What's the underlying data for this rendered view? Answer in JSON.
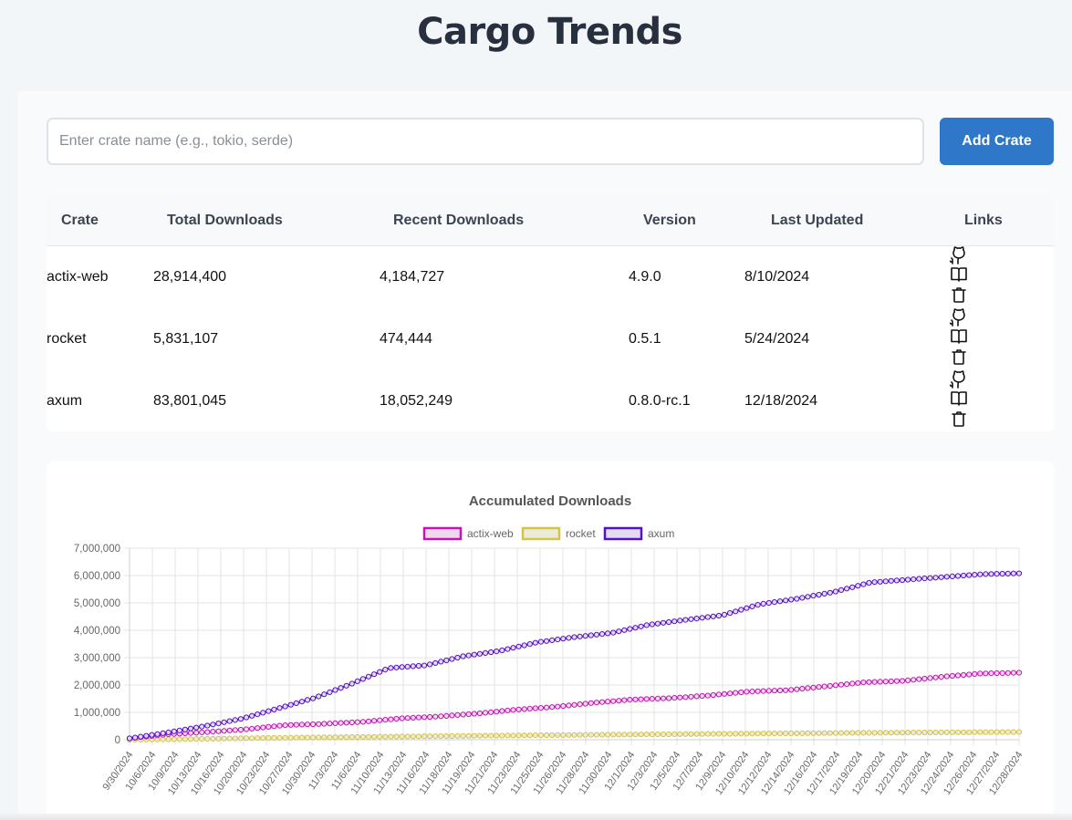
{
  "header": {
    "title": "Cargo Trends"
  },
  "search": {
    "placeholder": "Enter crate name (e.g., tokio, serde)",
    "value": ""
  },
  "toolbar": {
    "add_label": "Add Crate"
  },
  "table": {
    "headers": [
      "Crate",
      "Total Downloads",
      "Recent Downloads",
      "Version",
      "Last Updated",
      "Links"
    ],
    "rows": [
      {
        "crate": "actix-web",
        "total": "28,914,400",
        "recent": "4,184,727",
        "version": "4.9.0",
        "updated": "8/10/2024",
        "links": [
          "github-icon",
          "docs-book-icon",
          "delete-trash-icon"
        ]
      },
      {
        "crate": "rocket",
        "total": "5,831,107",
        "recent": "474,444",
        "version": "0.5.1",
        "updated": "5/24/2024",
        "links": [
          "github-icon",
          "docs-book-icon",
          "delete-trash-icon"
        ]
      },
      {
        "crate": "axum",
        "total": "83,801,045",
        "recent": "18,052,249",
        "version": "0.8.0-rc.1",
        "updated": "12/18/2024",
        "links": [
          "github-icon",
          "docs-book-icon",
          "delete-trash-icon"
        ]
      }
    ]
  },
  "chart_data": {
    "type": "line",
    "title": "Accumulated Downloads",
    "xlabel": "",
    "ylabel": "",
    "ylim": [
      0,
      7000000
    ],
    "yticks": [
      "0",
      "1,000,000",
      "2,000,000",
      "3,000,000",
      "4,000,000",
      "5,000,000",
      "6,000,000",
      "7,000,000"
    ],
    "x_tick_labels": [
      "9/30/2024",
      "10/6/2024",
      "10/9/2024",
      "10/13/2024",
      "10/16/2024",
      "10/20/2024",
      "10/23/2024",
      "10/27/2024",
      "10/30/2024",
      "11/3/2024",
      "11/6/2024",
      "11/10/2024",
      "11/13/2024",
      "11/16/2024",
      "11/18/2024",
      "11/19/2024",
      "11/21/2024",
      "11/23/2024",
      "11/25/2024",
      "11/26/2024",
      "11/28/2024",
      "11/30/2024",
      "12/1/2024",
      "12/3/2024",
      "12/5/2024",
      "12/7/2024",
      "12/9/2024",
      "12/10/2024",
      "12/12/2024",
      "12/14/2024",
      "12/16/2024",
      "12/17/2024",
      "12/19/2024",
      "12/20/2024",
      "12/21/2024",
      "12/23/2024",
      "12/24/2024",
      "12/26/2024",
      "12/27/2024",
      "12/28/2024"
    ],
    "legend_position": "top-center",
    "series": [
      {
        "name": "actix-web",
        "color": "#c414b4",
        "fill": "#efd9ec",
        "values": [
          50000,
          200000,
          280000,
          380000,
          530000,
          580000,
          650000,
          780000,
          850000,
          960000,
          1100000,
          1200000,
          1350000,
          1470000,
          1520000,
          1620000,
          1760000,
          1810000,
          1950000,
          2100000,
          2150000,
          2300000,
          2420000,
          2450000
        ]
      },
      {
        "name": "rocket",
        "color": "#d4c44a",
        "fill": "#ecebd8",
        "values": [
          0,
          15000,
          35000,
          55000,
          72000,
          88000,
          102000,
          117000,
          130000,
          143000,
          156000,
          168000,
          180000,
          191000,
          202000,
          213000,
          223000,
          233000,
          243000,
          252000,
          261000,
          270000,
          277000,
          280000
        ]
      },
      {
        "name": "axum",
        "color": "#5611c4",
        "fill": "#e2dcf2",
        "values": [
          50000,
          260000,
          490000,
          760000,
          1140000,
          1530000,
          2050000,
          2620000,
          2720000,
          3050000,
          3250000,
          3560000,
          3750000,
          3900000,
          4200000,
          4380000,
          4550000,
          4950000,
          5150000,
          5400000,
          5750000,
          5850000,
          5950000,
          6050000,
          6080000
        ]
      }
    ]
  }
}
